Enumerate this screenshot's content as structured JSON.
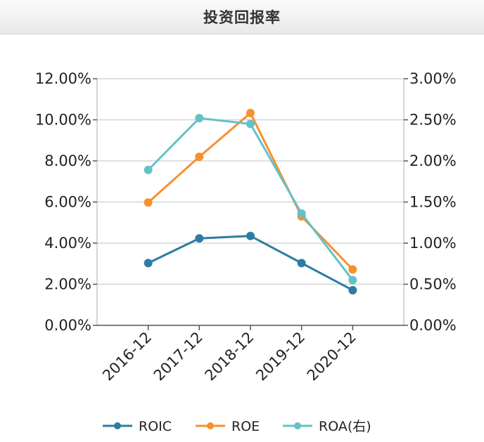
{
  "header": {
    "title": "投资回报率"
  },
  "chart_data": {
    "type": "line",
    "categories": [
      "2016-12",
      "2017-12",
      "2018-12",
      "2019-12",
      "2020-12"
    ],
    "y_left": {
      "min": 0,
      "max": 12,
      "step": 2,
      "tick_labels": [
        "0.00%",
        "2.00%",
        "4.00%",
        "6.00%",
        "8.00%",
        "10.00%",
        "12.00%"
      ]
    },
    "y_right": {
      "min": 0,
      "max": 3,
      "step": 0.5,
      "tick_labels": [
        "0.00%",
        "0.50%",
        "1.00%",
        "1.50%",
        "2.00%",
        "2.50%",
        "3.00%"
      ]
    },
    "grid": true,
    "legend_position": "bottom-center",
    "series": [
      {
        "name": "ROIC",
        "axis": "left",
        "color": "#2e7ca3",
        "values": [
          3.03,
          4.23,
          4.35,
          3.03,
          1.71
        ]
      },
      {
        "name": "ROE",
        "axis": "left",
        "color": "#f7902f",
        "values": [
          5.98,
          8.2,
          10.33,
          5.3,
          2.72
        ]
      },
      {
        "name": "ROA(右)",
        "axis": "right",
        "color": "#64c2c7",
        "values": [
          1.89,
          2.52,
          2.45,
          1.36,
          0.55
        ]
      }
    ]
  }
}
